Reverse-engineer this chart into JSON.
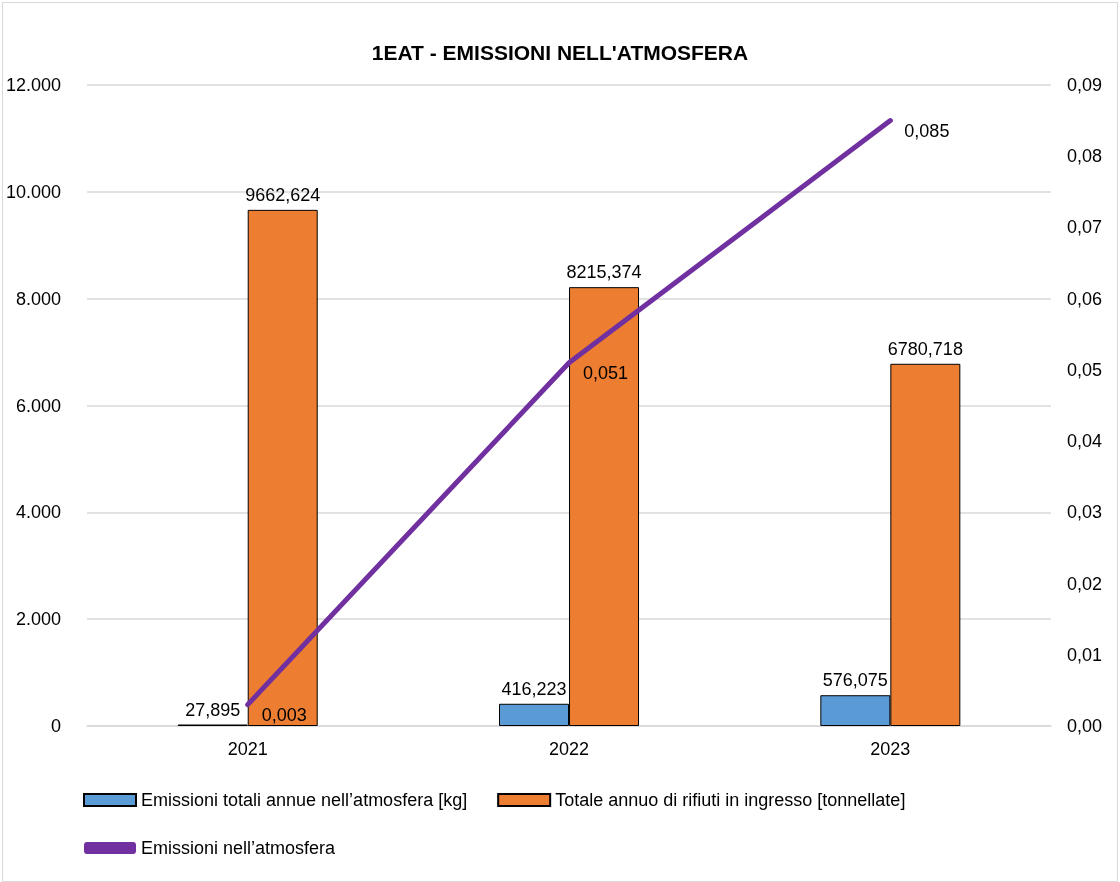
{
  "chart_data": {
    "type": "bar",
    "title": "1EAT - EMISSIONI NELL'ATMOSFERA",
    "categories": [
      "2021",
      "2022",
      "2023"
    ],
    "series": [
      {
        "name": "Emissioni totali annue nell’atmosfera [kg]",
        "color": "#5b9bd5",
        "values": [
          27.895,
          416.223,
          576.075
        ],
        "value_labels": [
          "27,895",
          "416,223",
          "576,075"
        ]
      },
      {
        "name": "Totale annuo di rifiuti in ingresso [tonnellate]",
        "color": "#ed7d31",
        "values": [
          9662.624,
          8215.374,
          6780.718
        ],
        "value_labels": [
          "9662,624",
          "8215,374",
          "6780,718"
        ]
      },
      {
        "name": "Emissioni nell’atmosfera",
        "type": "line",
        "axis": "y2",
        "color": "#7030a0",
        "marker": "none",
        "line_style": "solid",
        "values": [
          0.003,
          0.051,
          0.085
        ],
        "value_labels": [
          "0,003",
          "0,051",
          "0,085"
        ]
      }
    ],
    "ylim": [
      0,
      12000
    ],
    "yticks": [
      0,
      {
        "value": 2000,
        "label": "2.000"
      },
      {
        "value": 4000,
        "label": "4.000"
      },
      {
        "value": 6000,
        "label": "6.000"
      },
      {
        "value": 8000,
        "label": "8.000"
      },
      {
        "value": 10000,
        "label": "10.000"
      },
      {
        "value": 12000,
        "label": "12.000"
      }
    ],
    "y2lim": [
      0,
      0.09
    ],
    "y2ticks": [
      {
        "value": 0,
        "label": "0,00"
      },
      {
        "value": 0.01,
        "label": "0,01"
      },
      {
        "value": 0.02,
        "label": "0,02"
      },
      {
        "value": 0.03,
        "label": "0,03"
      },
      {
        "value": 0.04,
        "label": "0,04"
      },
      {
        "value": 0.05,
        "label": "0,05"
      },
      {
        "value": 0.06,
        "label": "0,06"
      },
      {
        "value": 0.07,
        "label": "0,07"
      },
      {
        "value": 0.08,
        "label": "0,08"
      },
      {
        "value": 0.09,
        "label": "0,09"
      }
    ],
    "grid": "y",
    "legend": "bottom"
  }
}
